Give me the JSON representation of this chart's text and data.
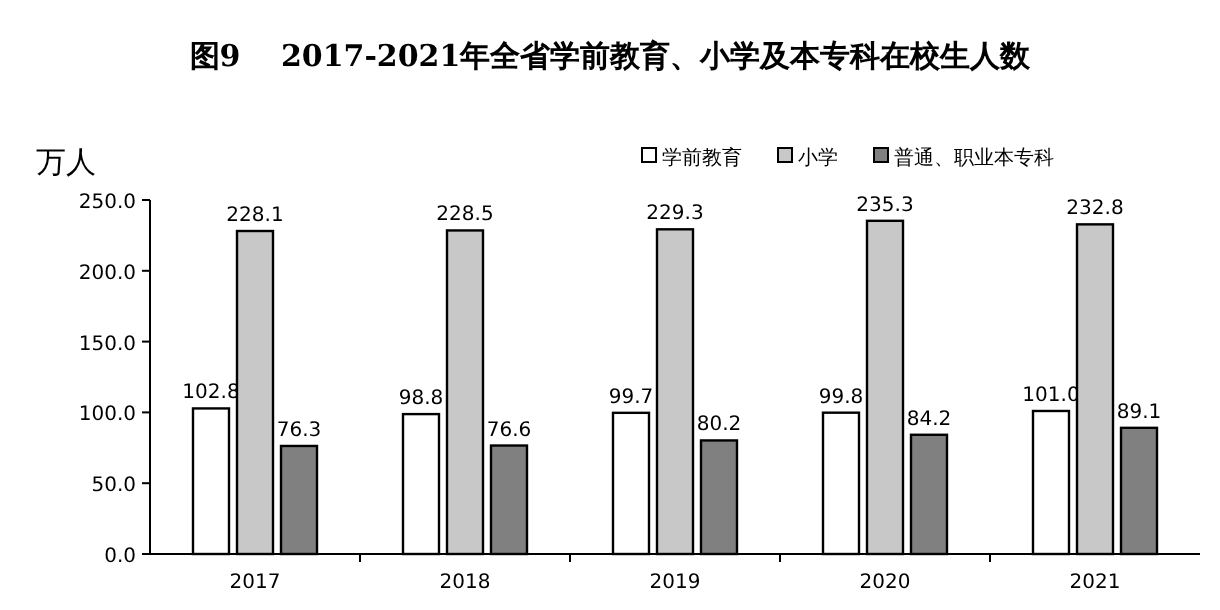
{
  "chart_data": {
    "type": "bar",
    "title": "图9　 2017-2021年全省学前教育、小学及本专科在校生人数",
    "ylabel": "万人",
    "categories": [
      "2017",
      "2018",
      "2019",
      "2020",
      "2021"
    ],
    "series": [
      {
        "name": "学前教育",
        "color": "#ffffff",
        "values": [
          102.8,
          98.8,
          99.7,
          99.8,
          101.0
        ],
        "value_labels": [
          "102.8",
          "98.8",
          "99.7",
          "99.8",
          "101.0"
        ]
      },
      {
        "name": "小学",
        "color": "#c8c8c8",
        "values": [
          228.1,
          228.5,
          229.3,
          235.3,
          232.8
        ],
        "value_labels": [
          "228.1",
          "228.5",
          "229.3",
          "235.3",
          "232.8"
        ]
      },
      {
        "name": "普通、职业本专科",
        "color": "#808080",
        "values": [
          76.3,
          76.6,
          80.2,
          84.2,
          89.1
        ],
        "value_labels": [
          "76.3",
          "76.6",
          "80.2",
          "84.2",
          "89.1"
        ]
      }
    ],
    "ylim": [
      0,
      250
    ],
    "yticks": [
      {
        "value": 0,
        "label": "0.0"
      },
      {
        "value": 50,
        "label": "50.0"
      },
      {
        "value": 100,
        "label": "100.0"
      },
      {
        "value": 150,
        "label": "150.0"
      },
      {
        "value": 200,
        "label": "200.0"
      },
      {
        "value": 250,
        "label": "250.0"
      }
    ],
    "grid": false,
    "legend": "top"
  }
}
